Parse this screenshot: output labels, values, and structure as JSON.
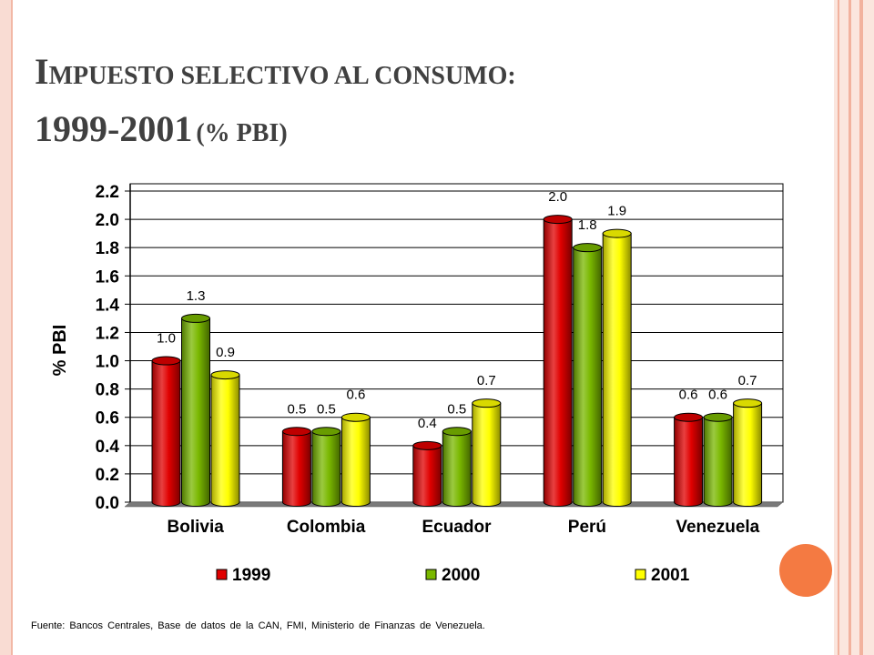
{
  "slide": {
    "title_line1_initial": "I",
    "title_line1_rest": "MPUESTO SELECTIVO AL CONSUMO:",
    "title_line2_years": "1999-2001",
    "title_line2_unit": "(% PBI)",
    "source": "Fuente: Bancos Centrales, Base de datos de la CAN, FMI, Ministerio de Finanzas de Venezuela."
  },
  "colors": {
    "series_1999": "#e00000",
    "series_2000": "#7ab800",
    "series_2001": "#ffff00",
    "accent_dot": "#f47a42"
  },
  "chart_data": {
    "type": "bar",
    "title": "",
    "xlabel": "",
    "ylabel": "% PBI",
    "ylim": [
      0,
      2.2
    ],
    "yticks": [
      "0.0",
      "0.2",
      "0.4",
      "0.6",
      "0.8",
      "1.0",
      "1.2",
      "1.4",
      "1.6",
      "1.8",
      "2.0",
      "2.2"
    ],
    "grid": true,
    "legend_position": "bottom",
    "categories": [
      "Bolivia",
      "Colombia",
      "Ecuador",
      "Perú",
      "Venezuela"
    ],
    "series": [
      {
        "name": "1999",
        "values": [
          1.0,
          0.5,
          0.4,
          2.0,
          0.6
        ],
        "labels": [
          "1.0",
          "0.5",
          "0.4",
          "2.0",
          "0.6"
        ]
      },
      {
        "name": "2000",
        "values": [
          1.3,
          0.5,
          0.5,
          1.8,
          0.6
        ],
        "labels": [
          "1.3",
          "0.5",
          "0.5",
          "1.8",
          "0.6"
        ]
      },
      {
        "name": "2001",
        "values": [
          0.9,
          0.6,
          0.7,
          1.9,
          0.7
        ],
        "labels": [
          "0.9",
          "0.6",
          "0.7",
          "1.9",
          "0.7"
        ]
      }
    ]
  }
}
